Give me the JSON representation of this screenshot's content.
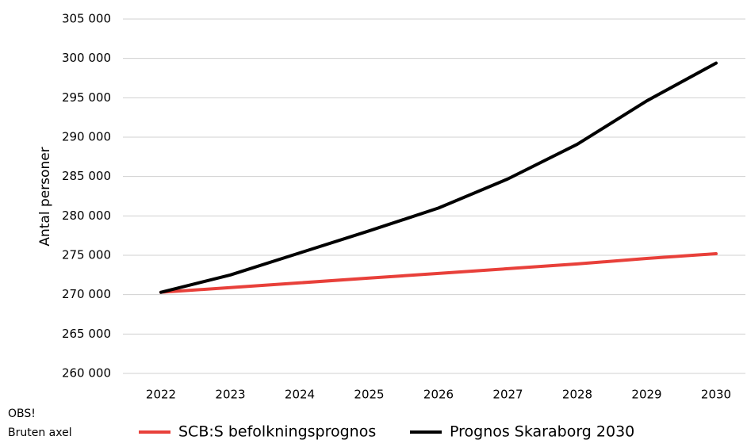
{
  "chart_data": {
    "type": "line",
    "y_label": "Antal personer",
    "annotations": [
      "OBS!",
      "Bruten axel"
    ],
    "categories": [
      "2022",
      "2023",
      "2024",
      "2025",
      "2026",
      "2027",
      "2028",
      "2029",
      "2030"
    ],
    "series": [
      {
        "name": "SCB:S befolkningsprognos",
        "color": "#e8403a",
        "values": [
          270300,
          270900,
          271500,
          272100,
          272700,
          273300,
          273900,
          274600,
          275200
        ]
      },
      {
        "name": "Prognos Skaraborg 2030",
        "color": "#000000",
        "values": [
          270300,
          272500,
          275300,
          278100,
          281000,
          284700,
          289100,
          294600,
          299400
        ]
      }
    ],
    "ylim": [
      260000,
      305000
    ],
    "yticks": [
      {
        "value": 260000,
        "label": "260 000"
      },
      {
        "value": 265000,
        "label": "265 000"
      },
      {
        "value": 270000,
        "label": "270 000"
      },
      {
        "value": 275000,
        "label": "275 000"
      },
      {
        "value": 280000,
        "label": "280 000"
      },
      {
        "value": 285000,
        "label": "285 000"
      },
      {
        "value": 290000,
        "label": "290 000"
      },
      {
        "value": 295000,
        "label": "295 000"
      },
      {
        "value": 300000,
        "label": "300 000"
      },
      {
        "value": 305000,
        "label": "305 000"
      }
    ],
    "grid": true,
    "legend": "bottom"
  }
}
